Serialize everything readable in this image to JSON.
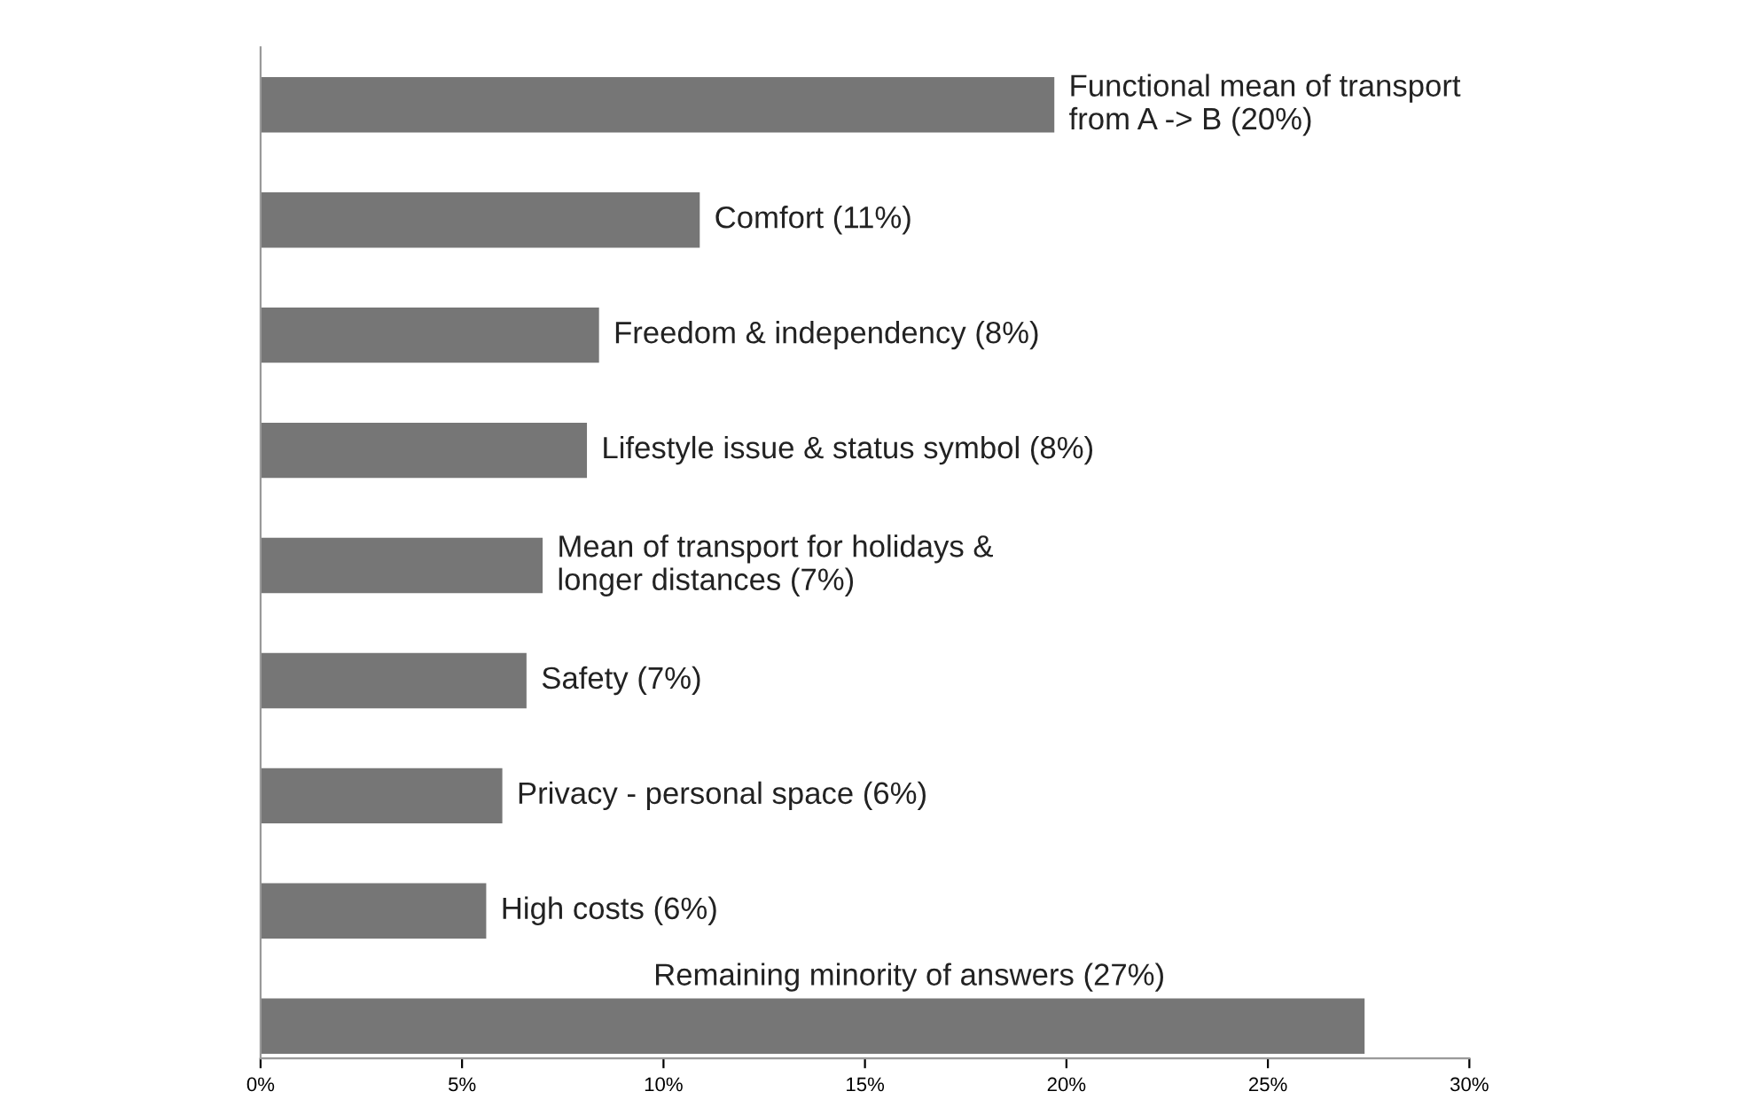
{
  "chart_data": {
    "type": "bar",
    "orientation": "horizontal",
    "categories": [
      null,
      null,
      null,
      null,
      null,
      null,
      null,
      null,
      null
    ],
    "values": [
      19.7,
      10.9,
      8.4,
      8.1,
      7.0,
      6.6,
      6.0,
      5.6,
      27.4
    ],
    "value_labels": [
      "Functional mean of transport\nfrom A -> B (20%)",
      "Comfort (11%)",
      "Freedom & independency (8%)",
      "Lifestyle issue & status symbol (8%)",
      "Mean of transport for holidays &\nlonger distances (7%)",
      "Safety (7%)",
      "Privacy - personal space (6%)",
      "High costs (6%)",
      "Remaining minority of answers (27%)"
    ],
    "color": "#767676",
    "xlim": [
      0,
      30
    ],
    "xticks": [
      {
        "value": 0,
        "label": "0%"
      },
      {
        "value": 5,
        "label": "5%"
      },
      {
        "value": 10,
        "label": "10%"
      },
      {
        "value": 15,
        "label": "15%"
      },
      {
        "value": 20,
        "label": "20%"
      },
      {
        "value": 25,
        "label": "25%"
      },
      {
        "value": 30,
        "label": "30%"
      }
    ],
    "tick_labels": "x",
    "grid": false,
    "legend": false
  }
}
